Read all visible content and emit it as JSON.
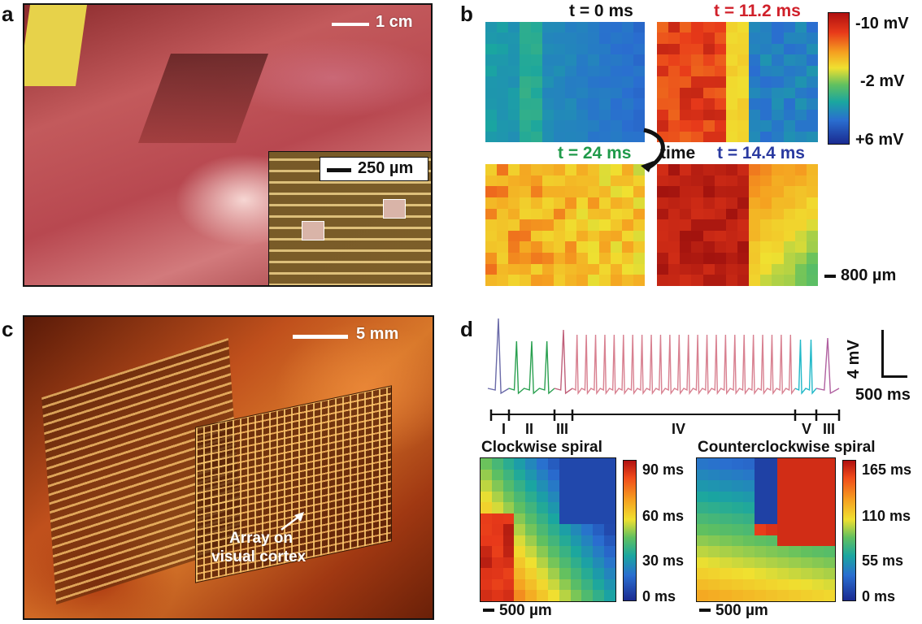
{
  "panels": {
    "a": {
      "label": "a",
      "scale": "1 cm",
      "inset_scale": "250 µm"
    },
    "b": {
      "label": "b",
      "times": [
        "t = 0 ms",
        "t = 11.2 ms",
        "t = 24 ms",
        "t = 14.4 ms"
      ],
      "time_colors": [
        "#111111",
        "#d0202a",
        "#1f9a4a",
        "#2a3aa0"
      ],
      "arrow_label": "time",
      "colorbar": [
        "-10 mV",
        "-2 mV",
        "+6 mV"
      ],
      "scale": "800 µm"
    },
    "c": {
      "label": "c",
      "scale": "5 mm",
      "annotation_line1": "Array on",
      "annotation_line2": "visual cortex"
    },
    "d": {
      "label": "d",
      "scale_v": "4 mV",
      "scale_t": "500 ms",
      "phases": [
        "I",
        "II",
        "III",
        "IV",
        "V",
        "III"
      ],
      "map1": {
        "title": "Clockwise spiral",
        "ticks": [
          "90 ms",
          "60 ms",
          "30 ms",
          "0 ms"
        ],
        "scale": "500 µm"
      },
      "map2": {
        "title": "Counterclockwise spiral",
        "ticks": [
          "165 ms",
          "110 ms",
          "55 ms",
          "0 ms"
        ],
        "scale": "500 µm"
      }
    }
  }
}
